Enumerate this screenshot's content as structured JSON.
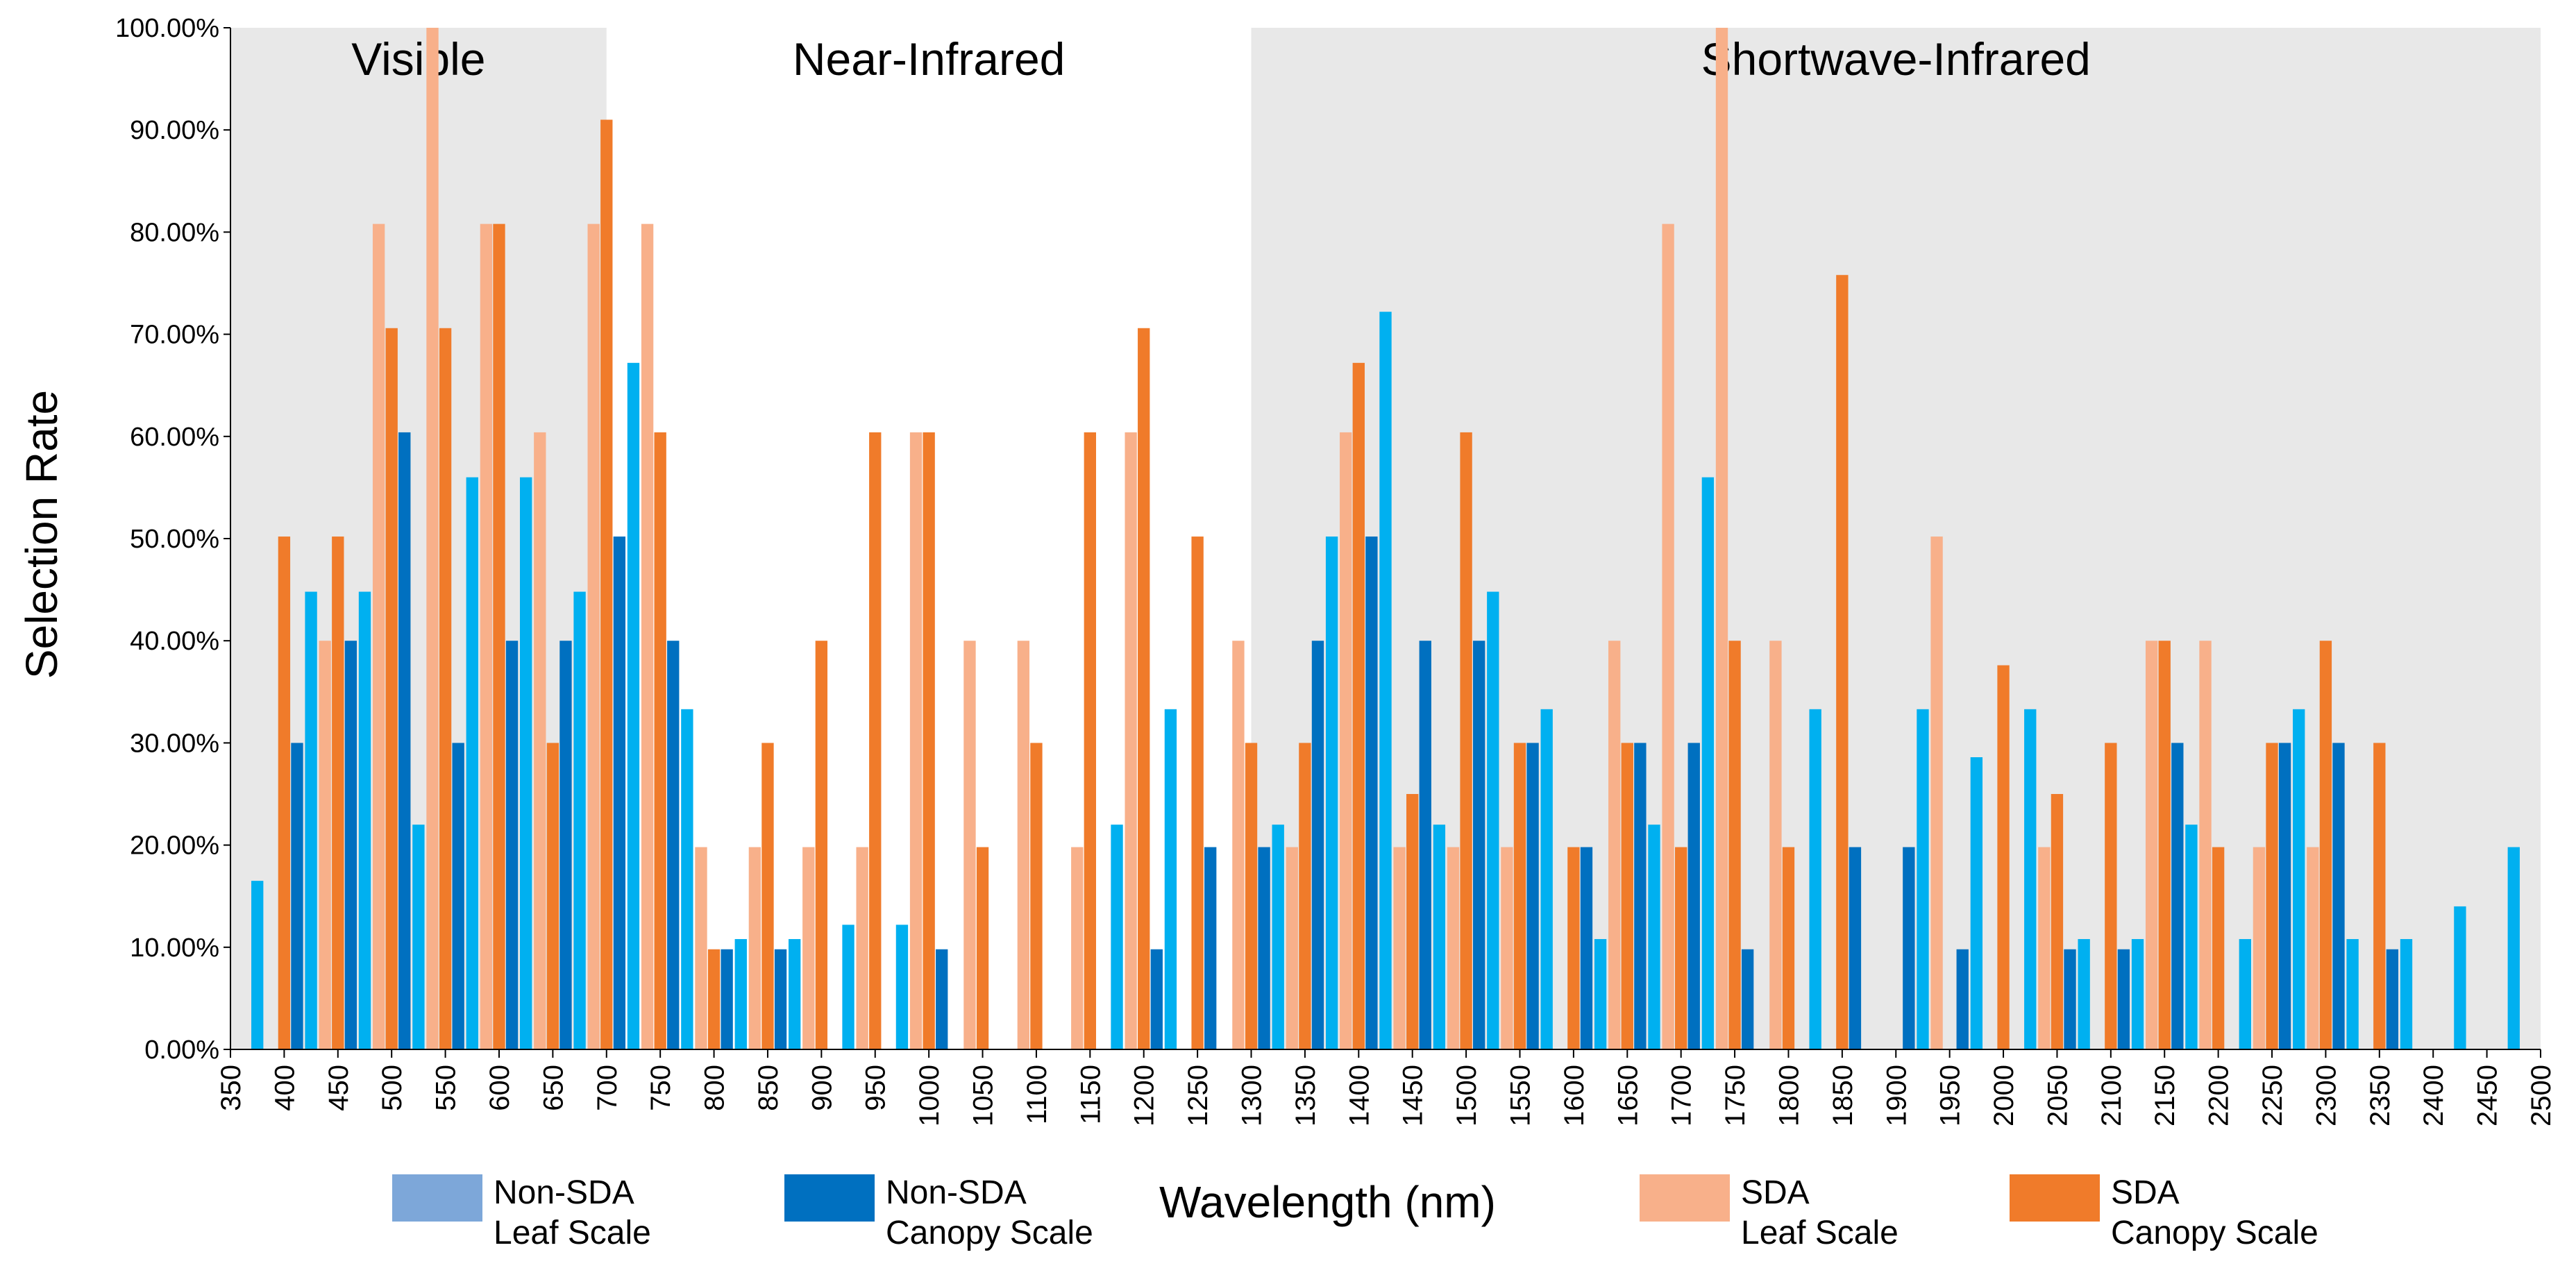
{
  "chart_data": {
    "type": "bar",
    "title": "",
    "xlabel": "Wavelength (nm)",
    "ylabel": "Selection Rate",
    "xlim": [
      350,
      2500
    ],
    "ylim": [
      0,
      100
    ],
    "y_tick_labels": [
      "0.00%",
      "10.00%",
      "20.00%",
      "30.00%",
      "40.00%",
      "50.00%",
      "60.00%",
      "70.00%",
      "80.00%",
      "90.00%",
      "100.00%"
    ],
    "x_tick_labels": [
      "350",
      "400",
      "450",
      "500",
      "550",
      "600",
      "650",
      "700",
      "750",
      "800",
      "850",
      "900",
      "950",
      "1000",
      "1050",
      "1100",
      "1150",
      "1200",
      "1250",
      "1300",
      "1350",
      "1400",
      "1450",
      "1500",
      "1550",
      "1600",
      "1650",
      "1700",
      "1750",
      "1800",
      "1850",
      "1900",
      "1950",
      "2000",
      "2050",
      "2100",
      "2150",
      "2200",
      "2250",
      "2300",
      "2350",
      "2400",
      "2450",
      "2500"
    ],
    "x_tick_values": [
      350,
      400,
      450,
      500,
      550,
      600,
      650,
      700,
      750,
      800,
      850,
      900,
      950,
      1000,
      1050,
      1100,
      1150,
      1200,
      1250,
      1300,
      1350,
      1400,
      1450,
      1500,
      1550,
      1600,
      1650,
      1700,
      1750,
      1800,
      1850,
      1900,
      1950,
      2000,
      2050,
      2100,
      2150,
      2200,
      2250,
      2300,
      2350,
      2400,
      2450,
      2500
    ],
    "regions": [
      {
        "name": "Visible",
        "start": 350,
        "end": 700,
        "shaded": true
      },
      {
        "name": "Near-Infrared",
        "start": 700,
        "end": 1300,
        "shaded": false
      },
      {
        "name": "Shortwave-Infrared",
        "start": 1300,
        "end": 2500,
        "shaded": true
      }
    ],
    "series": [
      {
        "name": "Non-SDA Leaf Scale",
        "color": "#00b0f0",
        "points": [
          [
            375,
            16.5
          ],
          [
            425,
            44.8
          ],
          [
            475,
            44.8
          ],
          [
            525,
            22
          ],
          [
            575,
            56
          ],
          [
            625,
            56
          ],
          [
            675,
            44.8
          ],
          [
            725,
            67.2
          ],
          [
            775,
            33.3
          ],
          [
            825,
            10.8
          ],
          [
            875,
            10.8
          ],
          [
            925,
            12.2
          ],
          [
            975,
            12.2
          ],
          [
            1175,
            22
          ],
          [
            1225,
            33.3
          ],
          [
            1325,
            22
          ],
          [
            1375,
            50.2
          ],
          [
            1425,
            72.2
          ],
          [
            1475,
            22
          ],
          [
            1525,
            44.8
          ],
          [
            1575,
            33.3
          ],
          [
            1625,
            10.8
          ],
          [
            1675,
            22
          ],
          [
            1725,
            56
          ],
          [
            1825,
            33.3
          ],
          [
            1925,
            33.3
          ],
          [
            1975,
            28.6
          ],
          [
            2025,
            33.3
          ],
          [
            2075,
            10.8
          ],
          [
            2125,
            10.8
          ],
          [
            2175,
            22
          ],
          [
            2225,
            10.8
          ],
          [
            2275,
            33.3
          ],
          [
            2325,
            10.8
          ],
          [
            2375,
            10.8
          ],
          [
            2425,
            14
          ],
          [
            2475,
            19.8
          ]
        ]
      },
      {
        "name": "Non-SDA Canopy Scale",
        "color": "#0070c0",
        "points": [
          [
            412,
            30
          ],
          [
            462,
            40
          ],
          [
            512,
            60.4
          ],
          [
            562,
            30
          ],
          [
            612,
            40
          ],
          [
            662,
            40
          ],
          [
            712,
            50.2
          ],
          [
            762,
            40
          ],
          [
            812,
            9.8
          ],
          [
            862,
            9.8
          ],
          [
            1012,
            9.8
          ],
          [
            1212,
            9.8
          ],
          [
            1262,
            19.8
          ],
          [
            1312,
            19.8
          ],
          [
            1362,
            40
          ],
          [
            1412,
            50.2
          ],
          [
            1462,
            40
          ],
          [
            1512,
            40
          ],
          [
            1562,
            30
          ],
          [
            1612,
            19.8
          ],
          [
            1662,
            30
          ],
          [
            1712,
            30
          ],
          [
            1762,
            9.8
          ],
          [
            1862,
            19.8
          ],
          [
            1912,
            19.8
          ],
          [
            1962,
            9.8
          ],
          [
            2062,
            9.8
          ],
          [
            2112,
            9.8
          ],
          [
            2162,
            30
          ],
          [
            2262,
            30
          ],
          [
            2312,
            30
          ],
          [
            2362,
            9.8
          ]
        ]
      },
      {
        "name": "SDA Leaf Scale",
        "color": "#f8b08a",
        "points": [
          [
            438,
            40
          ],
          [
            488,
            80.8
          ],
          [
            538,
            100
          ],
          [
            588,
            80.8
          ],
          [
            638,
            60.4
          ],
          [
            688,
            80.8
          ],
          [
            738,
            80.8
          ],
          [
            788,
            19.8
          ],
          [
            838,
            19.8
          ],
          [
            888,
            19.8
          ],
          [
            938,
            19.8
          ],
          [
            988,
            60.4
          ],
          [
            1038,
            40
          ],
          [
            1088,
            40
          ],
          [
            1138,
            19.8
          ],
          [
            1188,
            60.4
          ],
          [
            1288,
            40
          ],
          [
            1338,
            19.8
          ],
          [
            1388,
            60.4
          ],
          [
            1438,
            19.8
          ],
          [
            1488,
            19.8
          ],
          [
            1538,
            19.8
          ],
          [
            1638,
            40
          ],
          [
            1688,
            80.8
          ],
          [
            1738,
            100
          ],
          [
            1788,
            40
          ],
          [
            1938,
            50.2
          ],
          [
            2038,
            19.8
          ],
          [
            2138,
            40
          ],
          [
            2188,
            40
          ],
          [
            2238,
            19.8
          ],
          [
            2288,
            19.8
          ]
        ]
      },
      {
        "name": "SDA Canopy Scale",
        "color": "#f07b2a",
        "points": [
          [
            400,
            50.2
          ],
          [
            450,
            50.2
          ],
          [
            500,
            70.6
          ],
          [
            550,
            70.6
          ],
          [
            600,
            80.8
          ],
          [
            650,
            30
          ],
          [
            700,
            91
          ],
          [
            750,
            60.4
          ],
          [
            800,
            9.8
          ],
          [
            850,
            30
          ],
          [
            900,
            40
          ],
          [
            950,
            60.4
          ],
          [
            1000,
            60.4
          ],
          [
            1050,
            19.8
          ],
          [
            1100,
            30
          ],
          [
            1150,
            60.4
          ],
          [
            1200,
            70.6
          ],
          [
            1250,
            50.2
          ],
          [
            1300,
            30
          ],
          [
            1350,
            30
          ],
          [
            1400,
            67.2
          ],
          [
            1450,
            25
          ],
          [
            1500,
            60.4
          ],
          [
            1550,
            30
          ],
          [
            1600,
            19.8
          ],
          [
            1650,
            30
          ],
          [
            1700,
            19.8
          ],
          [
            1750,
            40
          ],
          [
            1800,
            19.8
          ],
          [
            1850,
            75.8
          ],
          [
            2000,
            37.6
          ],
          [
            2050,
            25
          ],
          [
            2100,
            30
          ],
          [
            2150,
            40
          ],
          [
            2200,
            19.8
          ],
          [
            2250,
            30
          ],
          [
            2300,
            40
          ],
          [
            2350,
            30
          ]
        ]
      }
    ],
    "legend": [
      {
        "line1": "Non-SDA",
        "line2": "Leaf Scale",
        "color": "#7da7d9"
      },
      {
        "line1": "Non-SDA",
        "line2": "Canopy Scale",
        "color": "#0070c0"
      },
      {
        "line1": "SDA",
        "line2": "Leaf Scale",
        "color": "#f8b08a"
      },
      {
        "line1": "SDA",
        "line2": "Canopy Scale",
        "color": "#f07b2a"
      }
    ]
  }
}
